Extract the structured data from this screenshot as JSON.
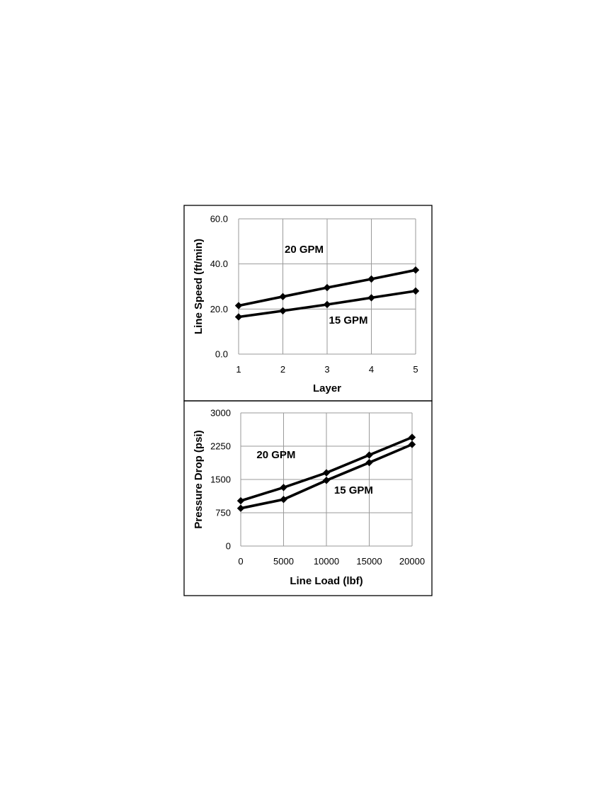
{
  "chart_data": [
    {
      "type": "line",
      "title": "",
      "xlabel": "Layer",
      "ylabel": "Line  Speed (ft/min)",
      "x": [
        1,
        2,
        3,
        4,
        5
      ],
      "x_tick_labels": [
        "1",
        "2",
        "3",
        "4",
        "5"
      ],
      "y_tick_labels": [
        "0.0",
        "20.0",
        "40.0",
        "60.0"
      ],
      "xlim": [
        1,
        5
      ],
      "ylim": [
        0,
        60
      ],
      "grid": true,
      "series": [
        {
          "name": "20 GPM",
          "values": [
            21.5,
            25.5,
            29.5,
            33.3,
            37.3
          ]
        },
        {
          "name": "15 GPM",
          "values": [
            16.5,
            19.2,
            22.0,
            25.0,
            28.0
          ]
        }
      ],
      "annotations": [
        {
          "text": "20 GPM",
          "x": 2.04,
          "y": 45
        },
        {
          "text": "15 GPM",
          "x": 3.04,
          "y": 13.5
        }
      ]
    },
    {
      "type": "line",
      "title": "",
      "xlabel": "Line Load (lbf)",
      "ylabel": "Pressure Drop  (psi)",
      "x": [
        0,
        5000,
        10000,
        15000,
        20000
      ],
      "x_tick_labels": [
        "0",
        "5000",
        "10000",
        "15000",
        "20000"
      ],
      "y_tick_labels": [
        "0",
        "750",
        "1500",
        "2250",
        "3000"
      ],
      "xlim": [
        0,
        20000
      ],
      "ylim": [
        0,
        3000
      ],
      "grid": true,
      "series": [
        {
          "name": "20 GPM",
          "values": [
            1020,
            1320,
            1650,
            2050,
            2450
          ]
        },
        {
          "name": "15 GPM",
          "values": [
            850,
            1050,
            1480,
            1880,
            2290
          ]
        }
      ],
      "annotations": [
        {
          "text": "20 GPM",
          "x": 1850,
          "y": 1980
        },
        {
          "text": "15 GPM",
          "x": 10900,
          "y": 1180
        }
      ]
    }
  ]
}
